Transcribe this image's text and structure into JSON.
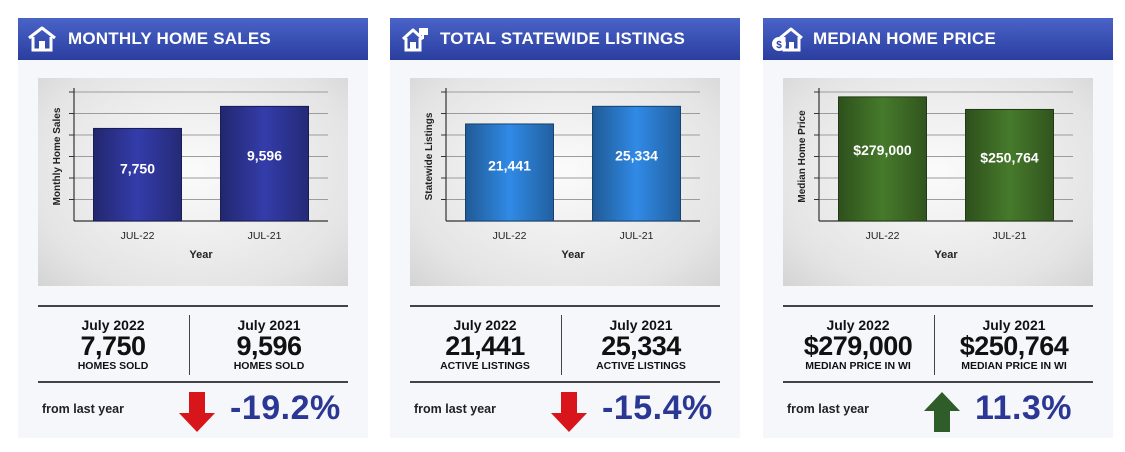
{
  "cards": [
    {
      "title": "MONTHLY HOME SALES",
      "icon": "house-icon",
      "chart": {
        "ylabel": "Monthly Home Sales",
        "xlabel": "Year",
        "bar_color": "#2d3494"
      },
      "left": {
        "year": "July 2022",
        "value": "7,750",
        "sub": "HOMES SOLD"
      },
      "right": {
        "year": "July 2021",
        "value": "9,596",
        "sub": "HOMES SOLD"
      },
      "change": {
        "label": "from last year",
        "value": "-19.2%",
        "direction": "down",
        "arrow_color": "#d8151a"
      }
    },
    {
      "title": "TOTAL STATEWIDE LISTINGS",
      "icon": "house-sign-icon",
      "chart": {
        "ylabel": "Statewide Listings",
        "xlabel": "Year",
        "bar_color": "#2a78c8"
      },
      "left": {
        "year": "July 2022",
        "value": "21,441",
        "sub": "ACTIVE LISTINGS"
      },
      "right": {
        "year": "July 2021",
        "value": "25,334",
        "sub": "ACTIVE LISTINGS"
      },
      "change": {
        "label": "from last year",
        "value": "-15.4%",
        "direction": "down",
        "arrow_color": "#d8151a"
      }
    },
    {
      "title": "MEDIAN HOME PRICE",
      "icon": "house-dollar-icon",
      "chart": {
        "ylabel": "Median Home Price",
        "xlabel": "Year",
        "bar_color": "#3d6a25"
      },
      "left": {
        "year": "July 2022",
        "value": "$279,000",
        "sub": "MEDIAN PRICE IN WI"
      },
      "right": {
        "year": "July 2021",
        "value": "$250,764",
        "sub": "MEDIAN PRICE IN WI"
      },
      "change": {
        "label": "from last year",
        "value": "11.3%",
        "direction": "up",
        "arrow_color": "#2f5d2a"
      }
    }
  ],
  "chart_data": [
    {
      "type": "bar",
      "title": "MONTHLY HOME SALES",
      "categories": [
        "JUL-22",
        "JUL-21"
      ],
      "values": [
        7750,
        9596
      ],
      "value_labels": [
        "7,750",
        "9,596"
      ],
      "xlabel": "Year",
      "ylabel": "Monthly Home Sales",
      "ylim": [
        0,
        10800
      ],
      "grid": true
    },
    {
      "type": "bar",
      "title": "TOTAL STATEWIDE LISTINGS",
      "categories": [
        "JUL-22",
        "JUL-21"
      ],
      "values": [
        21441,
        25334
      ],
      "value_labels": [
        "21,441",
        "25,334"
      ],
      "xlabel": "Year",
      "ylabel": "Statewide Listings",
      "ylim": [
        0,
        28500
      ],
      "grid": true
    },
    {
      "type": "bar",
      "title": "MEDIAN HOME PRICE",
      "categories": [
        "JUL-22",
        "JUL-21"
      ],
      "values": [
        279000,
        250764
      ],
      "value_labels": [
        "$279,000",
        "$250,764"
      ],
      "xlabel": "Year",
      "ylabel": "Median Home Price",
      "ylim": [
        0,
        290000
      ],
      "grid": true
    }
  ]
}
